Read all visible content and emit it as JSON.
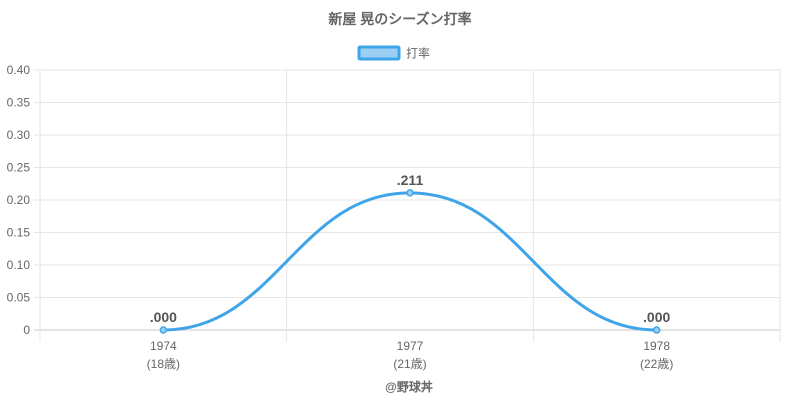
{
  "chart_data": {
    "type": "line",
    "title": "新屋 晃のシーズン打率",
    "legend": {
      "position": "top-center",
      "entries": [
        "打率"
      ]
    },
    "categories": [
      "1974",
      "1977",
      "1978"
    ],
    "category_sublabels": [
      "(18歳)",
      "(21歳)",
      "(22歳)"
    ],
    "series": [
      {
        "name": "打率",
        "values": [
          0.0,
          0.211,
          0.0
        ],
        "data_labels": [
          ".000",
          ".211",
          ".000"
        ]
      }
    ],
    "ylim": [
      0,
      0.4
    ],
    "yticks": [
      "0",
      "0.05",
      "0.10",
      "0.15",
      "0.20",
      "0.25",
      "0.30",
      "0.35",
      "0.40"
    ],
    "grid": true,
    "smooth": true,
    "colors": {
      "line": "#3fa5e8",
      "fill": "#9bcff3",
      "grid": "#e6e6e6",
      "axis": "#c8c8c8",
      "text": "#666666"
    }
  },
  "credit": "@野球丼"
}
